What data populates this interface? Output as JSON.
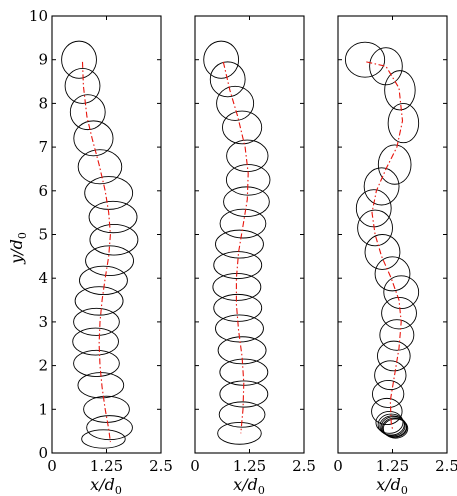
{
  "chart_data": [
    {
      "type": "scatter",
      "panel": "left",
      "xlabel": "x/d",
      "xlabel_sub": "0",
      "ylabel": "y/d",
      "ylabel_sub": "0",
      "xlim": [
        0,
        2.5
      ],
      "ylim": [
        0,
        10
      ],
      "xticks": [
        "0",
        "1.25",
        "2.5"
      ],
      "yticks": [
        "0",
        "1",
        "2",
        "3",
        "4",
        "5",
        "6",
        "7",
        "8",
        "9",
        "10"
      ],
      "trajectory": [
        {
          "x": 0.7,
          "y": 8.95
        },
        {
          "x": 0.72,
          "y": 8.4
        },
        {
          "x": 0.8,
          "y": 7.7
        },
        {
          "x": 0.92,
          "y": 7.2
        },
        {
          "x": 1.08,
          "y": 6.6
        },
        {
          "x": 1.22,
          "y": 6.0
        },
        {
          "x": 1.3,
          "y": 5.5
        },
        {
          "x": 1.34,
          "y": 5.0
        },
        {
          "x": 1.3,
          "y": 4.5
        },
        {
          "x": 1.22,
          "y": 4.0
        },
        {
          "x": 1.15,
          "y": 3.5
        },
        {
          "x": 1.1,
          "y": 3.0
        },
        {
          "x": 1.08,
          "y": 2.5
        },
        {
          "x": 1.1,
          "y": 2.0
        },
        {
          "x": 1.15,
          "y": 1.5
        },
        {
          "x": 1.22,
          "y": 1.0
        },
        {
          "x": 1.3,
          "y": 0.55
        },
        {
          "x": 1.34,
          "y": 0.25
        }
      ],
      "bubbles": [
        {
          "x": 0.62,
          "y": 9.0,
          "w": 0.8,
          "h": 0.85
        },
        {
          "x": 0.7,
          "y": 8.4,
          "w": 0.8,
          "h": 0.8
        },
        {
          "x": 0.82,
          "y": 7.8,
          "w": 0.8,
          "h": 0.8
        },
        {
          "x": 0.95,
          "y": 7.2,
          "w": 0.9,
          "h": 0.8
        },
        {
          "x": 1.1,
          "y": 6.55,
          "w": 1.0,
          "h": 0.78
        },
        {
          "x": 1.3,
          "y": 5.95,
          "w": 1.1,
          "h": 0.75
        },
        {
          "x": 1.4,
          "y": 5.4,
          "w": 1.1,
          "h": 0.72
        },
        {
          "x": 1.42,
          "y": 4.88,
          "w": 1.1,
          "h": 0.7
        },
        {
          "x": 1.32,
          "y": 4.4,
          "w": 1.1,
          "h": 0.68
        },
        {
          "x": 1.18,
          "y": 3.95,
          "w": 1.1,
          "h": 0.65
        },
        {
          "x": 1.08,
          "y": 3.48,
          "w": 1.1,
          "h": 0.65
        },
        {
          "x": 1.02,
          "y": 3.0,
          "w": 1.05,
          "h": 0.62
        },
        {
          "x": 1.0,
          "y": 2.55,
          "w": 1.05,
          "h": 0.62
        },
        {
          "x": 1.02,
          "y": 2.05,
          "w": 1.05,
          "h": 0.6
        },
        {
          "x": 1.12,
          "y": 1.55,
          "w": 1.05,
          "h": 0.58
        },
        {
          "x": 1.25,
          "y": 1.0,
          "w": 1.05,
          "h": 0.6
        },
        {
          "x": 1.32,
          "y": 0.58,
          "w": 1.05,
          "h": 0.55
        },
        {
          "x": 1.18,
          "y": 0.32,
          "w": 1.0,
          "h": 0.42
        }
      ]
    },
    {
      "type": "scatter",
      "panel": "middle",
      "xlabel": "x/d",
      "xlabel_sub": "0",
      "xlim": [
        0,
        2.5
      ],
      "ylim": [
        0,
        10
      ],
      "xticks": [
        "0",
        "1.25",
        "2.5"
      ],
      "trajectory": [
        {
          "x": 0.65,
          "y": 8.95
        },
        {
          "x": 0.8,
          "y": 8.3
        },
        {
          "x": 0.98,
          "y": 7.7
        },
        {
          "x": 1.15,
          "y": 7.0
        },
        {
          "x": 1.22,
          "y": 6.4
        },
        {
          "x": 1.2,
          "y": 5.8
        },
        {
          "x": 1.1,
          "y": 5.2
        },
        {
          "x": 1.0,
          "y": 4.6
        },
        {
          "x": 0.95,
          "y": 4.0
        },
        {
          "x": 0.95,
          "y": 3.4
        },
        {
          "x": 1.0,
          "y": 2.8
        },
        {
          "x": 1.08,
          "y": 2.2
        },
        {
          "x": 1.12,
          "y": 1.6
        },
        {
          "x": 1.1,
          "y": 1.0
        },
        {
          "x": 1.05,
          "y": 0.45
        }
      ],
      "bubbles": [
        {
          "x": 0.6,
          "y": 9.0,
          "w": 0.8,
          "h": 0.85
        },
        {
          "x": 0.75,
          "y": 8.55,
          "w": 0.8,
          "h": 0.8
        },
        {
          "x": 0.92,
          "y": 8.0,
          "w": 0.85,
          "h": 0.78
        },
        {
          "x": 1.08,
          "y": 7.45,
          "w": 0.9,
          "h": 0.75
        },
        {
          "x": 1.2,
          "y": 6.8,
          "w": 0.95,
          "h": 0.72
        },
        {
          "x": 1.22,
          "y": 6.25,
          "w": 1.0,
          "h": 0.7
        },
        {
          "x": 1.18,
          "y": 5.75,
          "w": 1.05,
          "h": 0.68
        },
        {
          "x": 1.1,
          "y": 5.25,
          "w": 1.05,
          "h": 0.66
        },
        {
          "x": 1.02,
          "y": 4.78,
          "w": 1.1,
          "h": 0.64
        },
        {
          "x": 0.98,
          "y": 4.3,
          "w": 1.1,
          "h": 0.62
        },
        {
          "x": 0.96,
          "y": 3.8,
          "w": 1.1,
          "h": 0.62
        },
        {
          "x": 0.98,
          "y": 3.32,
          "w": 1.1,
          "h": 0.62
        },
        {
          "x": 1.02,
          "y": 2.85,
          "w": 1.1,
          "h": 0.62
        },
        {
          "x": 1.08,
          "y": 2.35,
          "w": 1.1,
          "h": 0.62
        },
        {
          "x": 1.12,
          "y": 1.85,
          "w": 1.1,
          "h": 0.6
        },
        {
          "x": 1.12,
          "y": 1.35,
          "w": 1.1,
          "h": 0.6
        },
        {
          "x": 1.08,
          "y": 0.88,
          "w": 1.05,
          "h": 0.58
        },
        {
          "x": 1.02,
          "y": 0.45,
          "w": 1.0,
          "h": 0.5
        }
      ]
    },
    {
      "type": "scatter",
      "panel": "right",
      "xlabel": "x/d",
      "xlabel_sub": "0",
      "xlim": [
        0,
        2.5
      ],
      "ylim": [
        0,
        10
      ],
      "xticks": [
        "0",
        "1.25",
        "2.5"
      ],
      "trajectory": [
        {
          "x": 0.65,
          "y": 8.95
        },
        {
          "x": 1.1,
          "y": 8.85
        },
        {
          "x": 1.4,
          "y": 8.35
        },
        {
          "x": 1.48,
          "y": 7.6
        },
        {
          "x": 1.35,
          "y": 7.0
        },
        {
          "x": 1.1,
          "y": 6.5
        },
        {
          "x": 0.88,
          "y": 6.0
        },
        {
          "x": 0.78,
          "y": 5.5
        },
        {
          "x": 0.85,
          "y": 5.0
        },
        {
          "x": 1.0,
          "y": 4.5
        },
        {
          "x": 1.22,
          "y": 4.0
        },
        {
          "x": 1.4,
          "y": 3.5
        },
        {
          "x": 1.45,
          "y": 3.0
        },
        {
          "x": 1.4,
          "y": 2.4
        },
        {
          "x": 1.3,
          "y": 1.8
        },
        {
          "x": 1.2,
          "y": 1.2
        },
        {
          "x": 1.22,
          "y": 0.7
        },
        {
          "x": 1.25,
          "y": 0.55
        }
      ],
      "bubbles": [
        {
          "x": 0.62,
          "y": 9.0,
          "w": 0.9,
          "h": 0.8
        },
        {
          "x": 1.1,
          "y": 8.85,
          "w": 0.75,
          "h": 0.85
        },
        {
          "x": 1.42,
          "y": 8.3,
          "w": 0.7,
          "h": 0.9
        },
        {
          "x": 1.5,
          "y": 7.55,
          "w": 0.7,
          "h": 0.9
        },
        {
          "x": 1.3,
          "y": 6.6,
          "w": 0.75,
          "h": 0.9
        },
        {
          "x": 1.0,
          "y": 6.1,
          "w": 0.8,
          "h": 0.85
        },
        {
          "x": 0.82,
          "y": 5.6,
          "w": 0.8,
          "h": 0.85
        },
        {
          "x": 0.85,
          "y": 5.15,
          "w": 0.8,
          "h": 0.82
        },
        {
          "x": 1.02,
          "y": 4.6,
          "w": 0.8,
          "h": 0.8
        },
        {
          "x": 1.25,
          "y": 4.1,
          "w": 0.8,
          "h": 0.78
        },
        {
          "x": 1.45,
          "y": 3.68,
          "w": 0.8,
          "h": 0.75
        },
        {
          "x": 1.4,
          "y": 3.2,
          "w": 0.8,
          "h": 0.72
        },
        {
          "x": 1.35,
          "y": 2.7,
          "w": 0.78,
          "h": 0.7
        },
        {
          "x": 1.28,
          "y": 2.22,
          "w": 0.75,
          "h": 0.68
        },
        {
          "x": 1.2,
          "y": 1.78,
          "w": 0.72,
          "h": 0.66
        },
        {
          "x": 1.15,
          "y": 1.35,
          "w": 0.72,
          "h": 0.62
        },
        {
          "x": 1.12,
          "y": 0.95,
          "w": 0.7,
          "h": 0.6
        },
        {
          "x": 1.18,
          "y": 0.7,
          "w": 0.62,
          "h": 0.5
        },
        {
          "x": 1.22,
          "y": 0.65,
          "w": 0.6,
          "h": 0.48
        },
        {
          "x": 1.25,
          "y": 0.62,
          "w": 0.58,
          "h": 0.46
        },
        {
          "x": 1.28,
          "y": 0.6,
          "w": 0.58,
          "h": 0.46
        },
        {
          "x": 1.3,
          "y": 0.58,
          "w": 0.56,
          "h": 0.44
        },
        {
          "x": 1.32,
          "y": 0.56,
          "w": 0.56,
          "h": 0.44
        }
      ]
    }
  ]
}
